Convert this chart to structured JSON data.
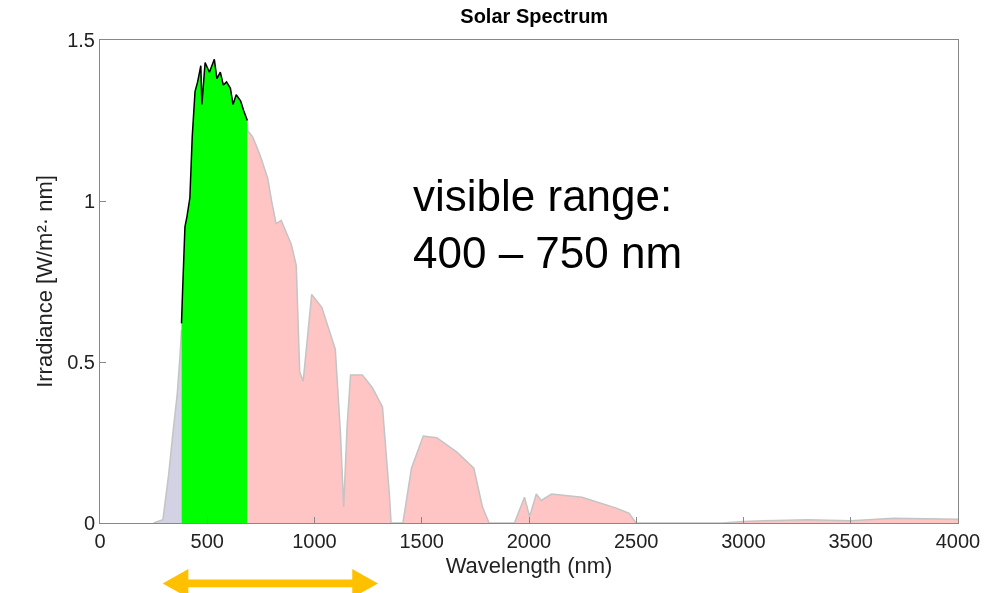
{
  "chart_data": {
    "type": "area",
    "title": "Solar Spectrum",
    "xlabel": "Wavelength (nm)",
    "ylabel": "Irradiance [W/m²· nm]",
    "xlim": [
      0,
      4000
    ],
    "xticks": [
      0,
      500,
      1000,
      1500,
      2000,
      2500,
      3000,
      3500,
      4000
    ],
    "ylim": [
      0,
      1.5
    ],
    "yticks": [
      0,
      0.5,
      1,
      1.5
    ],
    "annotations": [
      "visible range:\n400 – 750 nm"
    ],
    "series": [
      {
        "color": "#d2d2e4",
        "x": [
          250,
          293,
          320,
          340,
          360,
          373,
          380
        ],
        "values": [
          0,
          0.01,
          0.15,
          0.28,
          0.4,
          0.52,
          0.6
        ]
      },
      {
        "color": "#00ff00",
        "x": [
          380,
          385,
          396,
          405,
          419,
          430,
          443,
          455,
          470,
          475,
          490,
          510,
          533,
          545,
          561,
          575,
          590,
          608,
          620,
          635,
          656,
          670,
          687
        ],
        "values": [
          0.62,
          0.72,
          0.92,
          0.95,
          1.01,
          1.2,
          1.34,
          1.37,
          1.42,
          1.3,
          1.43,
          1.4,
          1.44,
          1.38,
          1.4,
          1.36,
          1.37,
          1.35,
          1.3,
          1.33,
          1.31,
          1.28,
          1.25
        ]
      },
      {
        "color": "#ffc4c4",
        "x": [
          687,
          711,
          730,
          750,
          782,
          800,
          821,
          845,
          870,
          892,
          915,
          931,
          947,
          987,
          1034,
          1097,
          1121,
          1136,
          1152,
          1168,
          1223,
          1270,
          1317,
          1349,
          1357,
          1412,
          1452,
          1507,
          1570,
          1664,
          1743,
          1783,
          1814,
          1932,
          1979,
          2003,
          2034,
          2057,
          2105,
          2247,
          2404,
          2467,
          2499,
          2900,
          3000,
          3150,
          3300,
          3500,
          3700,
          4000
        ],
        "values": [
          1.22,
          1.2,
          1.17,
          1.135,
          1.07,
          1.0,
          0.93,
          0.94,
          0.9,
          0.865,
          0.8,
          0.47,
          0.44,
          0.71,
          0.67,
          0.54,
          0.28,
          0.05,
          0.3,
          0.46,
          0.46,
          0.42,
          0.36,
          0.09,
          0,
          0,
          0.17,
          0.27,
          0.265,
          0.22,
          0.17,
          0.05,
          0,
          0,
          0.08,
          0.02,
          0.09,
          0.07,
          0.09,
          0.08,
          0.047,
          0.03,
          0,
          0,
          0.005,
          0.008,
          0.01,
          0.007,
          0.015,
          0.012
        ]
      }
    ]
  }
}
